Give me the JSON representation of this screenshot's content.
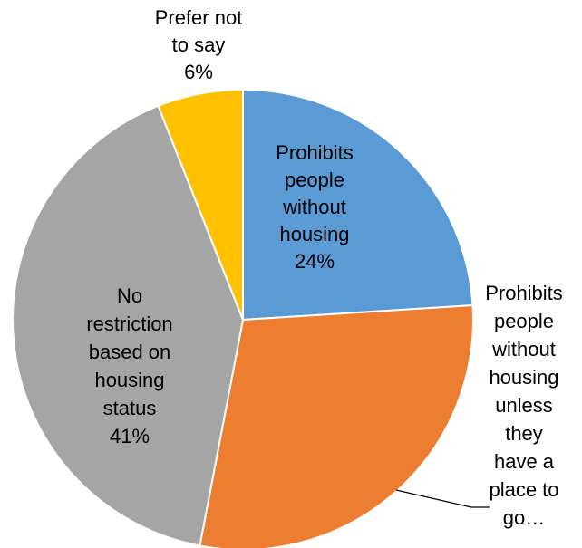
{
  "chart_data": {
    "type": "pie",
    "title": "",
    "start_angle_deg": 0,
    "direction": "clockwise",
    "slices": [
      {
        "label_lines": [
          "Prohibits",
          "people",
          "without",
          "housing",
          "24%"
        ],
        "value": 24,
        "color": "#5B9BD5"
      },
      {
        "label_lines": [
          "Prohibits",
          "people",
          "without",
          "housing",
          "unless",
          "they",
          "have a",
          "place to",
          "go…"
        ],
        "value": 29,
        "color": "#ED7D31"
      },
      {
        "label_lines": [
          "No",
          "restriction",
          "based on",
          "housing",
          "status",
          "41%"
        ],
        "value": 41,
        "color": "#A5A5A5"
      },
      {
        "label_lines": [
          "Prefer not",
          "to say",
          "6%"
        ],
        "value": 6,
        "color": "#FFC000"
      }
    ]
  }
}
